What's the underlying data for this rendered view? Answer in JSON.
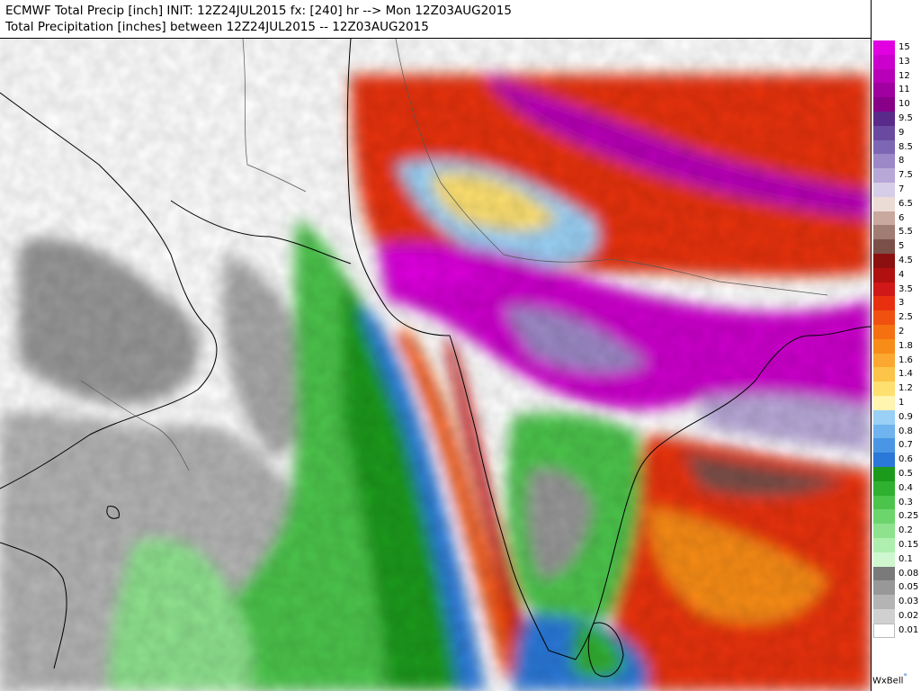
{
  "header": {
    "line1": "ECMWF Total Precip [inch] INIT: 12Z24JUL2015 fx: [240] hr --> Mon 12Z03AUG2015",
    "line2": "Total Precipitation [inches] between 12Z24JUL2015 -- 12Z03AUG2015"
  },
  "legend": {
    "levels": [
      {
        "label": "15",
        "color": "#e000e0"
      },
      {
        "label": "13",
        "color": "#cc00cc"
      },
      {
        "label": "12",
        "color": "#b800b8"
      },
      {
        "label": "11",
        "color": "#a000a0"
      },
      {
        "label": "10",
        "color": "#880088"
      },
      {
        "label": "9.5",
        "color": "#5a2a8a"
      },
      {
        "label": "9",
        "color": "#6a4aa0"
      },
      {
        "label": "8.5",
        "color": "#7d66b3"
      },
      {
        "label": "8",
        "color": "#9c88c6"
      },
      {
        "label": "7.5",
        "color": "#b8a8d8"
      },
      {
        "label": "7",
        "color": "#d6cde8"
      },
      {
        "label": "6.5",
        "color": "#ecdcd6"
      },
      {
        "label": "6",
        "color": "#c9a89e"
      },
      {
        "label": "5.5",
        "color": "#a07c72"
      },
      {
        "label": "5",
        "color": "#7a5048"
      },
      {
        "label": "4.5",
        "color": "#8c1010"
      },
      {
        "label": "4",
        "color": "#b01010"
      },
      {
        "label": "3.5",
        "color": "#d01818"
      },
      {
        "label": "3",
        "color": "#e83010"
      },
      {
        "label": "2.5",
        "color": "#f05010"
      },
      {
        "label": "2",
        "color": "#f57010"
      },
      {
        "label": "1.8",
        "color": "#f88c18"
      },
      {
        "label": "1.6",
        "color": "#faa830"
      },
      {
        "label": "1.4",
        "color": "#fcc448"
      },
      {
        "label": "1.2",
        "color": "#fde070"
      },
      {
        "label": "1",
        "color": "#fff4b0"
      },
      {
        "label": "0.9",
        "color": "#9ad0f5"
      },
      {
        "label": "0.8",
        "color": "#6fb4ee"
      },
      {
        "label": "0.7",
        "color": "#4a96e4"
      },
      {
        "label": "0.6",
        "color": "#2a78d8"
      },
      {
        "label": "0.5",
        "color": "#1c9a1c"
      },
      {
        "label": "0.4",
        "color": "#30b030"
      },
      {
        "label": "0.3",
        "color": "#4cc44c"
      },
      {
        "label": "0.25",
        "color": "#6cd66c"
      },
      {
        "label": "0.2",
        "color": "#8ee28e"
      },
      {
        "label": "0.15",
        "color": "#aeeeae"
      },
      {
        "label": "0.1",
        "color": "#cff7cf"
      },
      {
        "label": "0.08",
        "color": "#7a7a7a"
      },
      {
        "label": "0.05",
        "color": "#989898"
      },
      {
        "label": "0.03",
        "color": "#b4b4b4"
      },
      {
        "label": "0.02",
        "color": "#d0d0d0"
      },
      {
        "label": "0.01",
        "color": "#ffffff"
      }
    ]
  },
  "branding": {
    "logo_text": "WxBell"
  }
}
